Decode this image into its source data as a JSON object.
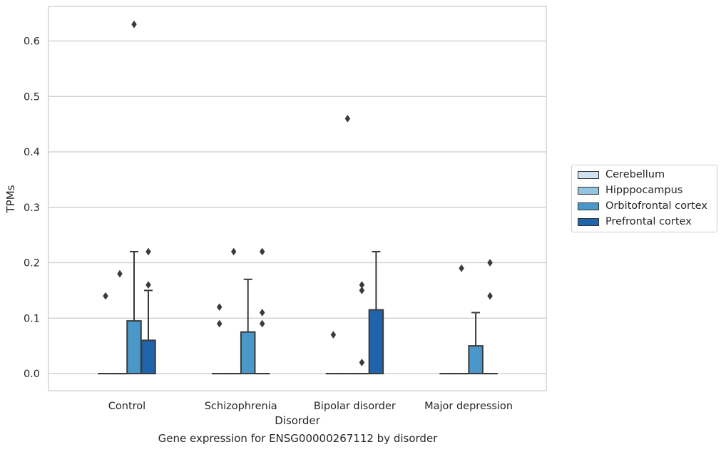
{
  "chart_data": {
    "type": "box",
    "caption": "Gene expression for ENSG00000267112 by disorder",
    "xlabel": "Disorder",
    "ylabel": "TPMs",
    "ylim": [
      -0.03,
      0.665
    ],
    "yticks": [
      "0.0",
      "0.1",
      "0.2",
      "0.3",
      "0.4",
      "0.5",
      "0.6"
    ],
    "ytick_values": [
      0.0,
      0.1,
      0.2,
      0.3,
      0.4,
      0.5,
      0.6
    ],
    "grid": true,
    "legend_position": "right",
    "categories": [
      "Control",
      "Schizophrenia",
      "Bipolar disorder",
      "Major depression"
    ],
    "series": [
      {
        "name": "Cerebellum",
        "color": "#d0e1f2",
        "boxes": [
          {
            "q1": 0,
            "median": 0,
            "q3": 0,
            "whislo": 0,
            "whishi": 0,
            "fliers": [
              0.14
            ]
          },
          {
            "q1": 0,
            "median": 0,
            "q3": 0,
            "whislo": 0,
            "whishi": 0,
            "fliers": [
              0.12,
              0.09
            ]
          },
          {
            "q1": 0,
            "median": 0,
            "q3": 0,
            "whislo": 0,
            "whishi": 0,
            "fliers": [
              0.07
            ]
          },
          {
            "q1": 0,
            "median": 0,
            "q3": 0,
            "whislo": 0,
            "whishi": 0,
            "fliers": []
          }
        ]
      },
      {
        "name": "Hipppocampus",
        "color": "#94c4df",
        "boxes": [
          {
            "q1": 0,
            "median": 0,
            "q3": 0,
            "whislo": 0,
            "whishi": 0,
            "fliers": [
              0.18
            ]
          },
          {
            "q1": 0,
            "median": 0,
            "q3": 0,
            "whislo": 0,
            "whishi": 0,
            "fliers": [
              0.22
            ]
          },
          {
            "q1": 0,
            "median": 0,
            "q3": 0,
            "whislo": 0,
            "whishi": 0,
            "fliers": [
              0.46
            ]
          },
          {
            "q1": 0,
            "median": 0,
            "q3": 0,
            "whislo": 0,
            "whishi": 0,
            "fliers": [
              0.19
            ]
          }
        ]
      },
      {
        "name": "Orbitofrontal cortex",
        "color": "#4a98c9",
        "boxes": [
          {
            "q1": 0,
            "median": 0,
            "q3": 0.095,
            "whislo": 0,
            "whishi": 0.22,
            "fliers": [
              0.63
            ]
          },
          {
            "q1": 0,
            "median": 0,
            "q3": 0.075,
            "whislo": 0,
            "whishi": 0.17,
            "fliers": []
          },
          {
            "q1": 0,
            "median": 0,
            "q3": 0,
            "whislo": 0,
            "whishi": 0,
            "fliers": [
              0.16,
              0.15,
              0.02
            ]
          },
          {
            "q1": 0,
            "median": 0,
            "q3": 0.05,
            "whislo": 0,
            "whishi": 0.11,
            "fliers": []
          }
        ]
      },
      {
        "name": "Prefrontal cortex",
        "color": "#2164ab",
        "boxes": [
          {
            "q1": 0,
            "median": 0,
            "q3": 0.06,
            "whislo": 0,
            "whishi": 0.15,
            "fliers": [
              0.22,
              0.16
            ]
          },
          {
            "q1": 0,
            "median": 0,
            "q3": 0,
            "whislo": 0,
            "whishi": 0,
            "fliers": [
              0.22,
              0.11,
              0.09
            ]
          },
          {
            "q1": 0,
            "median": 0,
            "q3": 0.115,
            "whislo": 0,
            "whishi": 0.22,
            "fliers": []
          },
          {
            "q1": 0,
            "median": 0,
            "q3": 0,
            "whislo": 0,
            "whishi": 0,
            "fliers": [
              0.2,
              0.14
            ]
          }
        ]
      }
    ]
  }
}
